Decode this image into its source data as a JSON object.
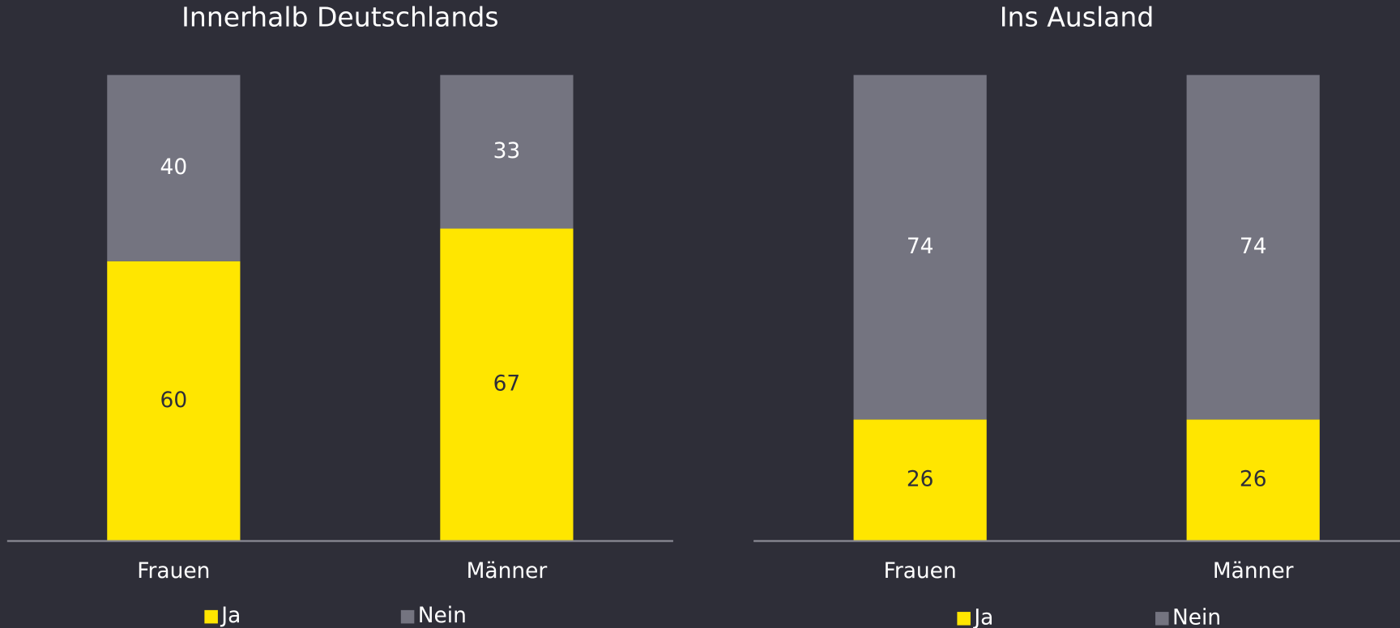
{
  "chart_data": [
    {
      "type": "stacked_bar",
      "title": "Innerhalb Deutschlands",
      "categories": [
        "Frauen",
        "Männer"
      ],
      "series": [
        {
          "name": "Ja",
          "color": "#ffe600",
          "values": [
            60,
            67
          ]
        },
        {
          "name": "Nein",
          "color": "#747480",
          "values": [
            40,
            33
          ]
        }
      ]
    },
    {
      "type": "stacked_bar",
      "title": "Ins Ausland",
      "categories": [
        "Frauen",
        "Männer"
      ],
      "series": [
        {
          "name": "Ja",
          "color": "#ffe600",
          "values": [
            26,
            26
          ]
        },
        {
          "name": "Nein",
          "color": "#747480",
          "values": [
            74,
            74
          ]
        }
      ]
    }
  ]
}
